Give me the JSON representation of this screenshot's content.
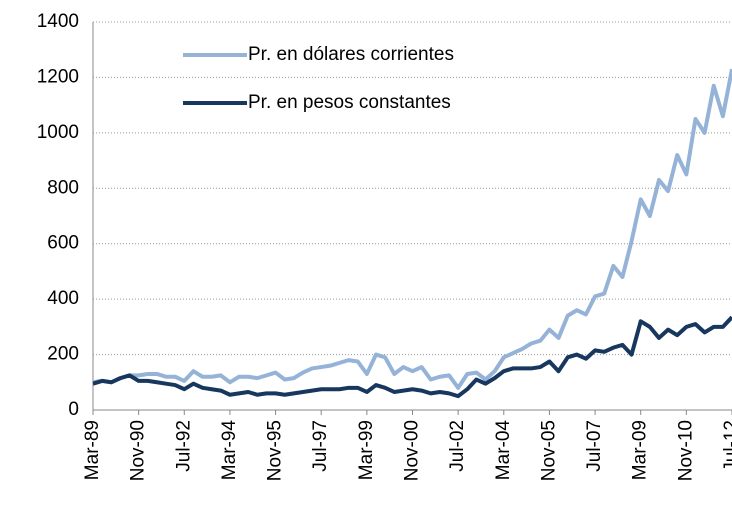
{
  "chart_data": {
    "type": "line",
    "categories": [
      "Mar-89",
      null,
      null,
      null,
      null,
      "Nov-90",
      null,
      null,
      null,
      null,
      "Jul-92",
      null,
      null,
      null,
      null,
      "Mar-94",
      null,
      null,
      null,
      null,
      "Nov-95",
      null,
      null,
      null,
      null,
      "Jul-97",
      null,
      null,
      null,
      null,
      "Mar-99",
      null,
      null,
      null,
      null,
      "Nov-00",
      null,
      null,
      null,
      null,
      "Jul-02",
      null,
      null,
      null,
      null,
      "Mar-04",
      null,
      null,
      null,
      null,
      "Nov-05",
      null,
      null,
      null,
      null,
      "Jul-07",
      null,
      null,
      null,
      null,
      "Mar-09",
      null,
      null,
      null,
      null,
      "Nov-10",
      null,
      null,
      null,
      null,
      "Jul-12"
    ],
    "series": [
      {
        "name": "Pr. en dólares corrientes",
        "color": "#95b3d7",
        "values": [
          100,
          105,
          100,
          115,
          125,
          125,
          130,
          130,
          120,
          120,
          105,
          140,
          120,
          120,
          125,
          100,
          120,
          120,
          115,
          125,
          135,
          110,
          115,
          135,
          150,
          155,
          160,
          170,
          180,
          175,
          130,
          200,
          190,
          130,
          155,
          140,
          155,
          110,
          120,
          125,
          80,
          130,
          135,
          110,
          140,
          190,
          205,
          220,
          240,
          250,
          290,
          260,
          340,
          360,
          345,
          410,
          420,
          520,
          480,
          610,
          760,
          700,
          830,
          790,
          920,
          850,
          1050,
          1000,
          1170,
          1060,
          1230
        ]
      },
      {
        "name": "Pr. en pesos constantes",
        "color": "#17375e",
        "values": [
          95,
          105,
          100,
          115,
          125,
          105,
          105,
          100,
          95,
          90,
          75,
          95,
          80,
          75,
          70,
          55,
          60,
          65,
          55,
          60,
          60,
          55,
          60,
          65,
          70,
          75,
          75,
          75,
          80,
          80,
          65,
          90,
          80,
          65,
          70,
          75,
          70,
          60,
          65,
          60,
          50,
          75,
          110,
          95,
          115,
          140,
          150,
          150,
          150,
          155,
          175,
          140,
          190,
          200,
          185,
          215,
          210,
          225,
          235,
          200,
          320,
          300,
          260,
          290,
          270,
          300,
          310,
          280,
          300,
          300,
          335
        ]
      }
    ],
    "ylim": [
      0,
      1400
    ],
    "yticks": [
      0,
      200,
      400,
      600,
      800,
      1000,
      1200,
      1400
    ],
    "grid": true,
    "legend": "top-left"
  }
}
